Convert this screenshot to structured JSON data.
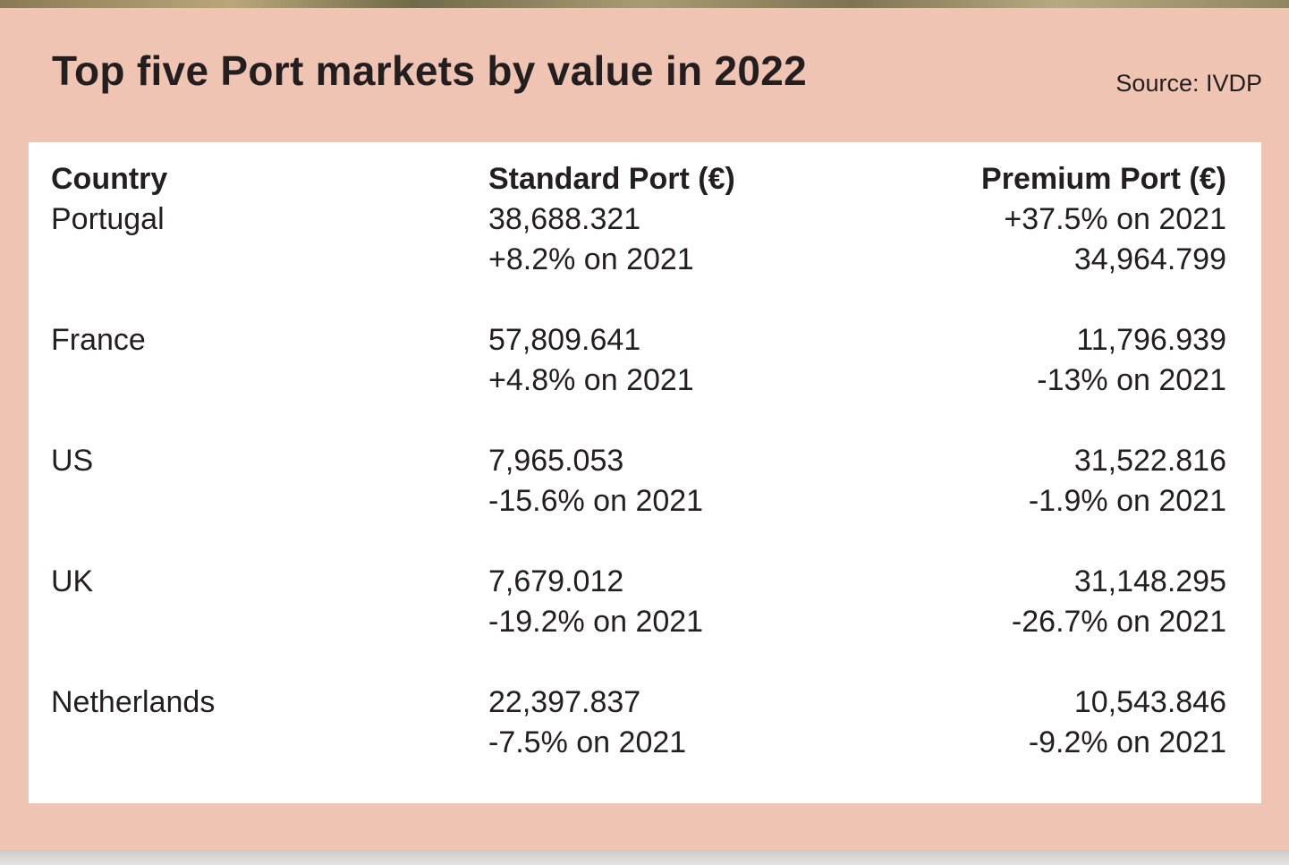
{
  "title": "Top five Port markets by value in 2022",
  "source": "Source: IVDP",
  "colors": {
    "panel": "#efc4b3",
    "card": "#ffffff",
    "text": "#231f20"
  },
  "chart_data": {
    "type": "table",
    "title": "Top five Port markets by value in 2022",
    "source": "Source: IVDP",
    "columns": [
      "Country",
      "Standard Port (€)",
      "Premium Port (€)"
    ],
    "rows": [
      {
        "country": "Portugal",
        "standard_value": "38,688.321",
        "standard_change": "+8.2% on 2021",
        "premium_line1": "+37.5% on 2021",
        "premium_line2": "34,964.799"
      },
      {
        "country": "France",
        "standard_value": "57,809.641",
        "standard_change": "+4.8% on 2021",
        "premium_line1": "11,796.939",
        "premium_line2": "-13% on 2021"
      },
      {
        "country": "US",
        "standard_value": "7,965.053",
        "standard_change": "-15.6% on 2021",
        "premium_line1": "31,522.816",
        "premium_line2": "-1.9% on 2021"
      },
      {
        "country": "UK",
        "standard_value": "7,679.012",
        "standard_change": "-19.2% on 2021",
        "premium_line1": "31,148.295",
        "premium_line2": "-26.7% on 2021"
      },
      {
        "country": "Netherlands",
        "standard_value": "22,397.837",
        "standard_change": "-7.5% on 2021",
        "premium_line1": "10,543.846",
        "premium_line2": "-9.2% on 2021"
      }
    ]
  }
}
